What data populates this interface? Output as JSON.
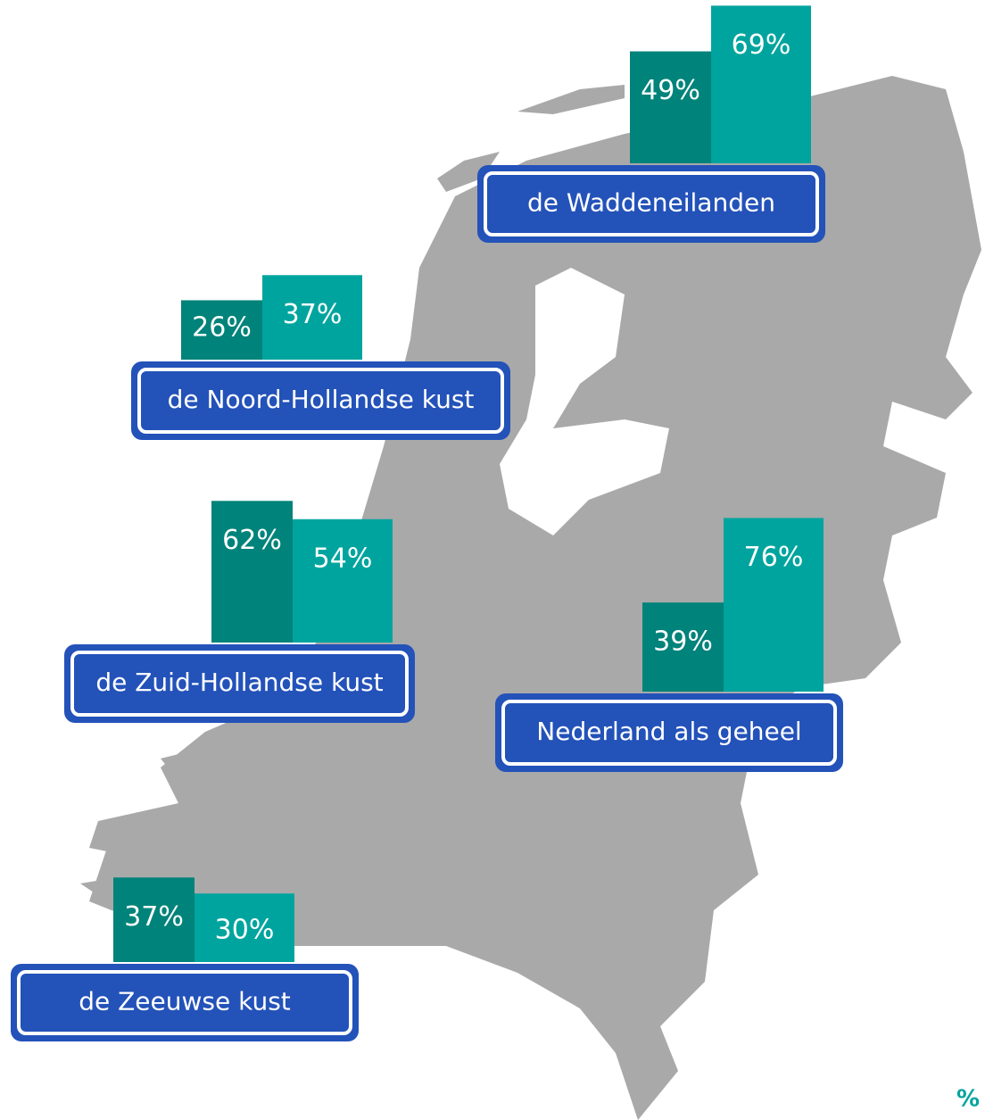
{
  "regions": [
    {
      "name": "de Waddeneilanden",
      "values": [
        49,
        69
      ],
      "value_labels": [
        "49%",
        "69%"
      ]
    },
    {
      "name": "de Noord-Hollandse kust",
      "values": [
        26,
        37
      ],
      "value_labels": [
        "26%",
        "37%"
      ]
    },
    {
      "name": "de Zuid-Hollandse kust",
      "values": [
        62,
        54
      ],
      "value_labels": [
        "62%",
        "54%"
      ]
    },
    {
      "name": "Nederland als geheel",
      "values": [
        39,
        76
      ],
      "value_labels": [
        "39%",
        "76%"
      ]
    },
    {
      "name": "de Zeeuwse kust",
      "values": [
        37,
        30
      ],
      "value_labels": [
        "37%",
        "30%"
      ]
    }
  ],
  "colors": [
    "#00837a",
    "#00a49e"
  ],
  "unit": "%"
}
